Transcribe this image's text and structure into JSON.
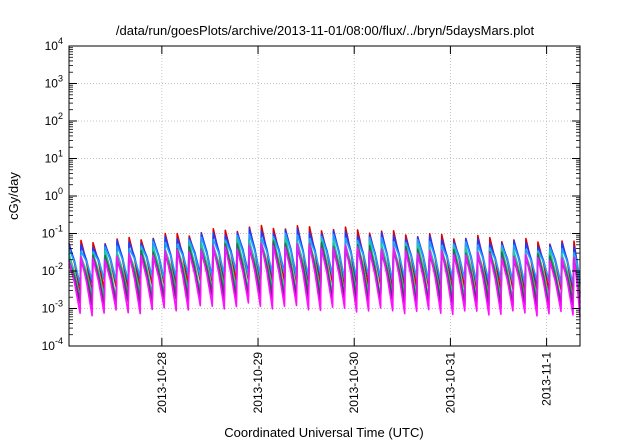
{
  "chart_data": {
    "type": "line",
    "title": "/data/run/goesPlots/archive/2013-11-01/08:00/flux/../bryn/5daysMars.plot",
    "xlabel": "Coordinated Universal Time (UTC)",
    "ylabel": "cGy/day",
    "y_scale": "log",
    "ylim": [
      0.0001,
      10000
    ],
    "y_ticks": [
      {
        "value": 0.0001,
        "base": "10",
        "exp": "-4"
      },
      {
        "value": 0.001,
        "base": "10",
        "exp": "-3"
      },
      {
        "value": 0.01,
        "base": "10",
        "exp": "-2"
      },
      {
        "value": 0.1,
        "base": "10",
        "exp": "-1"
      },
      {
        "value": 1,
        "base": "10",
        "exp": "0"
      },
      {
        "value": 10,
        "base": "10",
        "exp": "1"
      },
      {
        "value": 100,
        "base": "10",
        "exp": "2"
      },
      {
        "value": 1000,
        "base": "10",
        "exp": "3"
      },
      {
        "value": 10000,
        "base": "10",
        "exp": "4"
      }
    ],
    "xlim": [
      "2013-10-27 00:50",
      "2013-11-01 08:20"
    ],
    "x_ticks": [
      {
        "value": "2013-10-28",
        "label": "2013-10-28"
      },
      {
        "value": "2013-10-29",
        "label": "2013-10-29"
      },
      {
        "value": "2013-10-30",
        "label": "2013-10-30"
      },
      {
        "value": "2013-10-31",
        "label": "2013-10-31"
      },
      {
        "value": "2013-11-01",
        "label": "2013-11-1"
      }
    ],
    "grid": true,
    "legend": false,
    "pattern": {
      "description_period_hours": 3.0,
      "start": "2013-10-27 00:50"
    },
    "series": [
      {
        "color": "#e00000",
        "peak": [
          0.055,
          0.06,
          0.07,
          0.085,
          0.1,
          0.12,
          0.14,
          0.15,
          0.14,
          0.13,
          0.12,
          0.1,
          0.09,
          0.08,
          0.075,
          0.065,
          0.06,
          0.055
        ],
        "trough": [
          0.0028,
          0.003,
          0.0035,
          0.004,
          0.0045,
          0.005,
          0.005,
          0.0048,
          0.0045,
          0.004,
          0.0038,
          0.0035,
          0.0033,
          0.003,
          0.003,
          0.0028,
          0.0028,
          0.0028
        ]
      },
      {
        "color": "#1a3cff",
        "peak": [
          0.045,
          0.05,
          0.06,
          0.07,
          0.085,
          0.1,
          0.115,
          0.12,
          0.115,
          0.105,
          0.095,
          0.085,
          0.075,
          0.068,
          0.062,
          0.055,
          0.05,
          0.045
        ],
        "trough": [
          0.0045,
          0.005,
          0.0055,
          0.006,
          0.007,
          0.0075,
          0.008,
          0.0075,
          0.007,
          0.0065,
          0.006,
          0.0055,
          0.0052,
          0.005,
          0.0048,
          0.0046,
          0.0045,
          0.0045
        ]
      },
      {
        "color": "#1ea0ff",
        "peak": [
          0.035,
          0.038,
          0.045,
          0.055,
          0.065,
          0.075,
          0.085,
          0.09,
          0.085,
          0.08,
          0.072,
          0.065,
          0.058,
          0.052,
          0.048,
          0.042,
          0.038,
          0.035
        ],
        "trough": [
          0.005,
          0.0055,
          0.006,
          0.0065,
          0.007,
          0.0075,
          0.008,
          0.0078,
          0.0074,
          0.007,
          0.0065,
          0.006,
          0.0057,
          0.0055,
          0.0053,
          0.0051,
          0.005,
          0.005
        ]
      },
      {
        "color": "#20c8a0",
        "peak": [
          0.028,
          0.03,
          0.035,
          0.042,
          0.05,
          0.058,
          0.065,
          0.07,
          0.066,
          0.06,
          0.055,
          0.05,
          0.045,
          0.04,
          0.037,
          0.033,
          0.03,
          0.028
        ],
        "trough": [
          0.0018,
          0.002,
          0.0022,
          0.0025,
          0.0028,
          0.003,
          0.0032,
          0.003,
          0.0028,
          0.0026,
          0.0024,
          0.0022,
          0.0021,
          0.002,
          0.0019,
          0.0018,
          0.0018,
          0.0018
        ]
      },
      {
        "color": "#1e7a3c",
        "peak": [
          0.022,
          0.024,
          0.028,
          0.034,
          0.04,
          0.046,
          0.052,
          0.055,
          0.052,
          0.048,
          0.044,
          0.04,
          0.036,
          0.032,
          0.03,
          0.027,
          0.024,
          0.022
        ],
        "trough": [
          0.0014,
          0.0015,
          0.0017,
          0.0019,
          0.0021,
          0.0023,
          0.0024,
          0.0023,
          0.0022,
          0.002,
          0.0019,
          0.0017,
          0.0016,
          0.0015,
          0.0015,
          0.0014,
          0.0014,
          0.0014
        ]
      },
      {
        "color": "#7a1a9a",
        "peak": [
          0.018,
          0.02,
          0.023,
          0.028,
          0.033,
          0.038,
          0.043,
          0.045,
          0.043,
          0.04,
          0.036,
          0.033,
          0.03,
          0.027,
          0.025,
          0.022,
          0.02,
          0.018
        ],
        "trough": [
          0.0011,
          0.0012,
          0.0013,
          0.0015,
          0.0017,
          0.0018,
          0.0019,
          0.0018,
          0.0017,
          0.0016,
          0.0015,
          0.0014,
          0.0013,
          0.0012,
          0.0012,
          0.0011,
          0.0011,
          0.0011
        ]
      },
      {
        "color": "#ff10ff",
        "peak": [
          0.02,
          0.022,
          0.026,
          0.031,
          0.037,
          0.042,
          0.047,
          0.05,
          0.047,
          0.044,
          0.04,
          0.037,
          0.033,
          0.03,
          0.027,
          0.024,
          0.022,
          0.02
        ],
        "trough": [
          0.0007,
          0.00075,
          0.0008,
          0.0009,
          0.001,
          0.0011,
          0.0012,
          0.0011,
          0.001,
          0.00095,
          0.0009,
          0.00085,
          0.0008,
          0.00078,
          0.00076,
          0.00074,
          0.00072,
          0.0007
        ]
      }
    ]
  }
}
